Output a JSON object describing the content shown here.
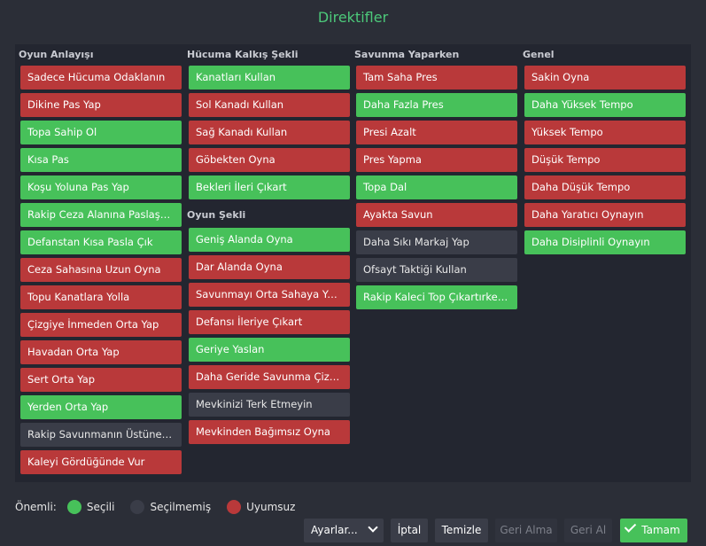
{
  "window": {
    "title": "Direktifler"
  },
  "columns": [
    {
      "header": "Oyun Anlayışı",
      "items": [
        {
          "label": "Sadece Hücuma Odaklanın",
          "state": "red"
        },
        {
          "label": "Dikine Pas Yap",
          "state": "red"
        },
        {
          "label": "Topa Sahip Ol",
          "state": "green"
        },
        {
          "label": "Kısa Pas",
          "state": "green"
        },
        {
          "label": "Koşu Yoluna Pas Yap",
          "state": "green"
        },
        {
          "label": "Rakip Ceza Alanına Paslaşarak Gir",
          "state": "green"
        },
        {
          "label": "Defanstan Kısa Pasla Çık",
          "state": "green"
        },
        {
          "label": "Ceza Sahasına Uzun Oyna",
          "state": "red"
        },
        {
          "label": "Topu Kanatlara Yolla",
          "state": "red"
        },
        {
          "label": "Çizgiye İnmeden Orta Yap",
          "state": "red"
        },
        {
          "label": "Havadan Orta Yap",
          "state": "red"
        },
        {
          "label": "Sert Orta Yap",
          "state": "red"
        },
        {
          "label": "Yerden Orta Yap",
          "state": "green"
        },
        {
          "label": "Rakip Savunmanın Üstüne Git",
          "state": "neutral"
        },
        {
          "label": "Kaleyi Gördüğünde Vur",
          "state": "red"
        }
      ]
    },
    {
      "header": "Hücuma Kalkış Şekli",
      "items": [
        {
          "label": "Kanatları Kullan",
          "state": "green"
        },
        {
          "label": "Sol Kanadı Kullan",
          "state": "red"
        },
        {
          "label": "Sağ Kanadı Kullan",
          "state": "red"
        },
        {
          "label": "Göbekten Oyna",
          "state": "red"
        },
        {
          "label": "Bekleri İleri Çıkart",
          "state": "green"
        }
      ],
      "sub_header": "Oyun Şekli",
      "sub_items": [
        {
          "label": "Geniş Alanda Oyna",
          "state": "green"
        },
        {
          "label": "Dar Alanda Oyna",
          "state": "red"
        },
        {
          "label": "Savunmayı Orta Sahaya Yakın Kur",
          "state": "red"
        },
        {
          "label": "Defansı İleriye Çıkart",
          "state": "red"
        },
        {
          "label": "Geriye Yaslan",
          "state": "green"
        },
        {
          "label": "Daha Geride Savunma Çizgisi",
          "state": "red"
        },
        {
          "label": "Mevkinizi Terk Etmeyin",
          "state": "neutral"
        },
        {
          "label": "Mevkinden Bağımsız Oyna",
          "state": "red"
        }
      ]
    },
    {
      "header": "Savunma Yaparken",
      "items": [
        {
          "label": "Tam Saha Pres",
          "state": "red"
        },
        {
          "label": "Daha Fazla Pres",
          "state": "green"
        },
        {
          "label": "Presi Azalt",
          "state": "red"
        },
        {
          "label": "Pres Yapma",
          "state": "red"
        },
        {
          "label": "Topa Dal",
          "state": "green"
        },
        {
          "label": "Ayakta Savun",
          "state": "red"
        },
        {
          "label": "Daha Sıkı Markaj Yap",
          "state": "neutral"
        },
        {
          "label": "Ofsayt Taktiği Kullan",
          "state": "neutral"
        },
        {
          "label": "Rakip Kaleci Top Çıkartırken Baskı Yap",
          "state": "green"
        }
      ]
    },
    {
      "header": "Genel",
      "items": [
        {
          "label": "Sakin Oyna",
          "state": "red"
        },
        {
          "label": "Daha Yüksek Tempo",
          "state": "green"
        },
        {
          "label": "Yüksek Tempo",
          "state": "red"
        },
        {
          "label": "Düşük Tempo",
          "state": "red"
        },
        {
          "label": "Daha Düşük Tempo",
          "state": "red"
        },
        {
          "label": "Daha Yaratıcı Oynayın",
          "state": "red"
        },
        {
          "label": "Daha Disiplinli Oynayın",
          "state": "green"
        }
      ]
    }
  ],
  "legend": {
    "label": "Önemli:",
    "entries": [
      {
        "label": "Seçili",
        "state": "green"
      },
      {
        "label": "Seçilmemiş",
        "state": "neutral"
      },
      {
        "label": "Uyumsuz",
        "state": "red"
      }
    ]
  },
  "buttons": {
    "presets": "Ayarlar...",
    "cancel": "İptal",
    "clear": "Temizle",
    "undo": "Geri Alma",
    "redo": "Geri Al",
    "ok": "Tamam"
  },
  "colors": {
    "green": "#47c15a",
    "red": "#b9393a",
    "neutral": "#3a3d48",
    "title": "#4cc97a"
  }
}
